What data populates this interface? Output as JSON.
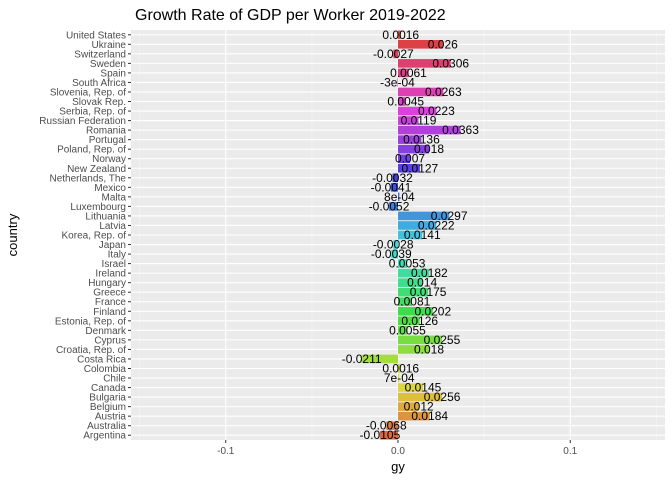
{
  "chart_data": {
    "type": "bar",
    "orientation": "horizontal",
    "title": "Growth Rate of GDP per Worker 2019-2022",
    "xlabel": "gy",
    "ylabel": "country",
    "xlim": [
      -0.155,
      0.155
    ],
    "x_ticks": [
      -0.1,
      0,
      0.1
    ],
    "x_tick_labels": [
      "-0.1",
      "0.0",
      "0.1"
    ],
    "grid": true,
    "legend": "none",
    "categories": [
      "United States",
      "Ukraine",
      "Switzerland",
      "Sweden",
      "Spain",
      "South Africa",
      "Slovenia, Rep. of",
      "Slovak Rep.",
      "Serbia, Rep. of",
      "Russian Federation",
      "Romania",
      "Portugal",
      "Poland, Rep. of",
      "Norway",
      "New Zealand",
      "Netherlands, The",
      "Mexico",
      "Malta",
      "Luxembourg",
      "Lithuania",
      "Latvia",
      "Korea, Rep. of",
      "Japan",
      "Italy",
      "Israel",
      "Ireland",
      "Hungary",
      "Greece",
      "France",
      "Finland",
      "Estonia, Rep. of",
      "Denmark",
      "Cyprus",
      "Croatia, Rep. of",
      "Costa Rica",
      "Colombia",
      "Chile",
      "Canada",
      "Bulgaria",
      "Belgium",
      "Austria",
      "Australia",
      "Argentina"
    ],
    "values": [
      0.0016,
      0.026,
      -0.0027,
      0.0306,
      0.0061,
      -0.0003,
      0.0263,
      0.0045,
      0.0223,
      0.0119,
      0.0363,
      0.0136,
      0.018,
      0.007,
      0.0127,
      -0.0032,
      -0.0041,
      0.0008,
      -0.0052,
      0.0297,
      0.0222,
      0.0141,
      -0.0028,
      -0.0039,
      0.0053,
      0.0182,
      0.014,
      0.0175,
      0.0081,
      0.0202,
      0.0126,
      0.0055,
      0.0255,
      0.018,
      -0.0211,
      0.0016,
      0.0007,
      0.0145,
      0.0256,
      0.012,
      0.0184,
      -0.0068,
      -0.0105
    ],
    "value_labels": [
      "0.0016",
      "0.026",
      "-0.0027",
      "0.0306",
      "0.0061",
      "-3e-04",
      "0.0263",
      "0.0045",
      "0.0223",
      "0.0119",
      "0.0363",
      "0.0136",
      "0.018",
      "0.007",
      "0.0127",
      "-0.0032",
      "-0.0041",
      "8e-04",
      "-0.0052",
      "0.0297",
      "0.0222",
      "0.0141",
      "-0.0028",
      "-0.0039",
      "0.0053",
      "0.0182",
      "0.014",
      "0.0175",
      "0.0081",
      "0.0202",
      "0.0126",
      "0.0055",
      "0.0255",
      "0.018",
      "-0.0211",
      "0.0016",
      "7e-04",
      "0.0145",
      "0.0256",
      "0.012",
      "0.0184",
      "-0.0068",
      "-0.0105"
    ]
  },
  "colors": {
    "panel_background": "#ebebeb",
    "grid_major": "#ffffff",
    "grid_minor": "#f5f5f5",
    "page_background": "#ffffff"
  }
}
